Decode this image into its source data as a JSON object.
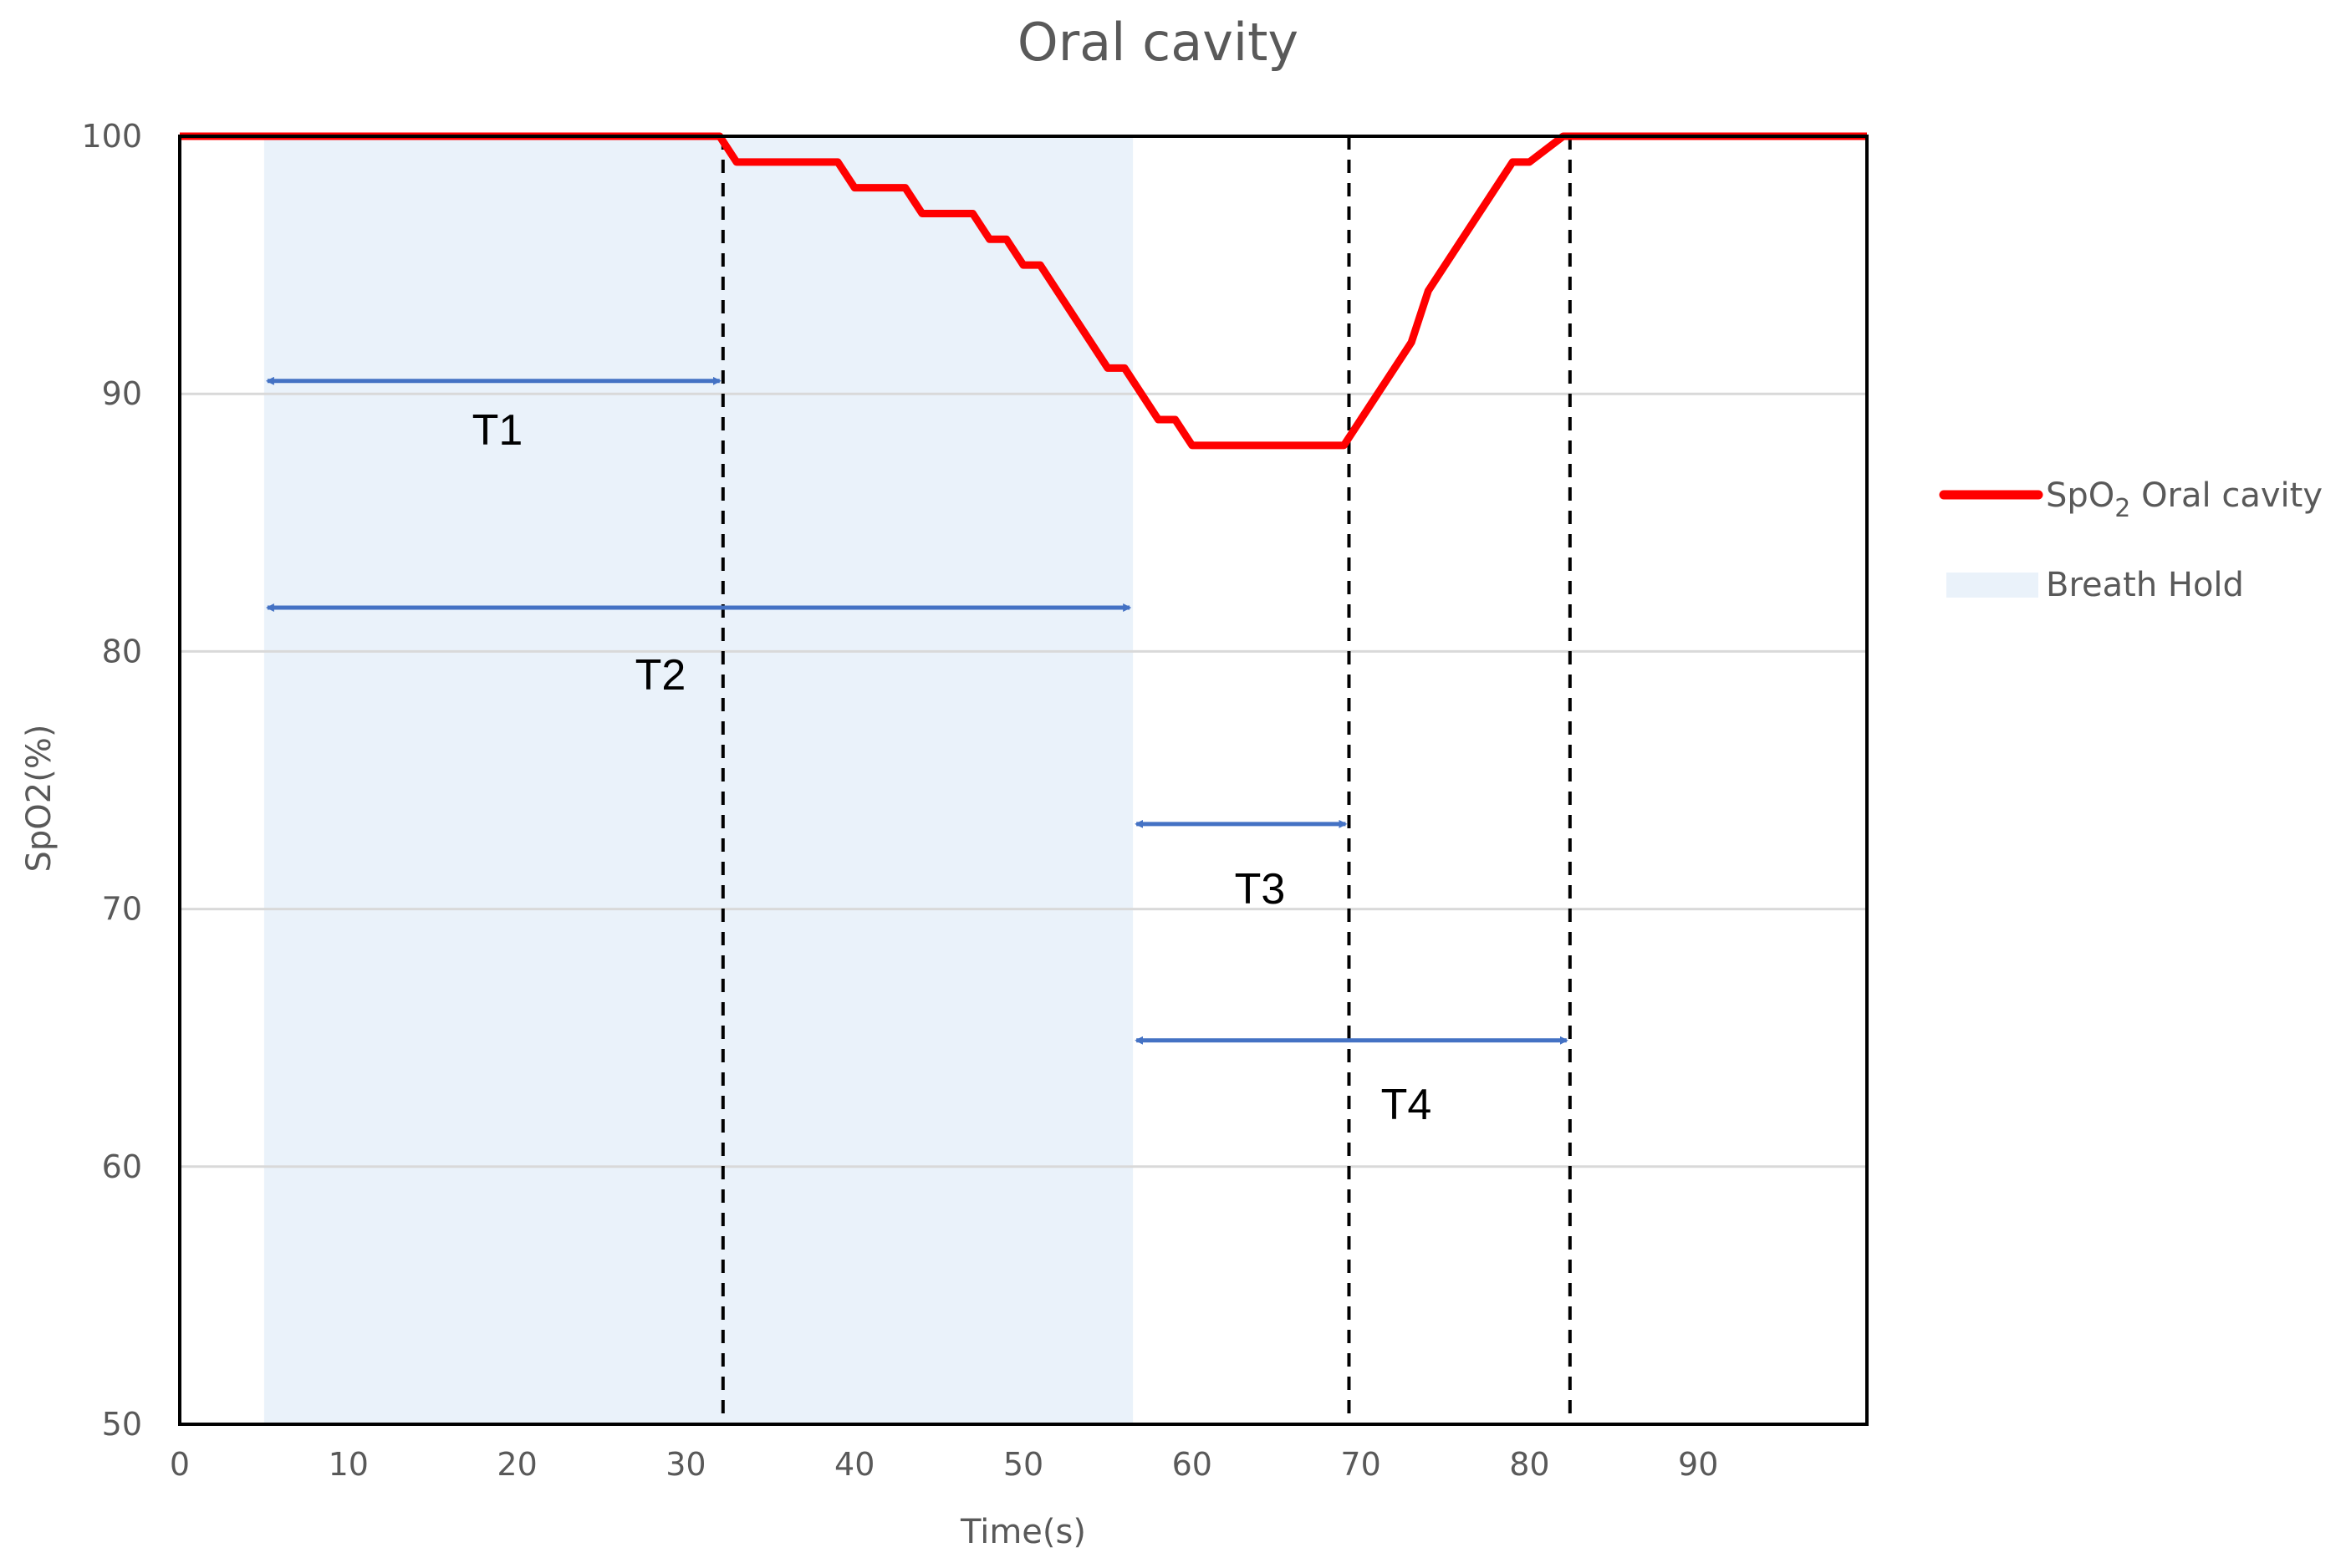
{
  "chart_data": {
    "type": "line",
    "title": "Oral cavity",
    "xlabel": "Time(s)",
    "ylabel": "SpO2(%)",
    "xlim": [
      0,
      100
    ],
    "ylim": [
      50,
      100
    ],
    "x_ticks": [
      0,
      10,
      20,
      30,
      40,
      50,
      60,
      70,
      80,
      90
    ],
    "y_ticks": [
      50,
      60,
      70,
      80,
      90,
      100
    ],
    "grid": "horizontal",
    "legend_position": "right",
    "series": [
      {
        "name": "SpO2 Oral cavity",
        "color": "#ff0000",
        "x": [
          0,
          32,
          33,
          39,
          40,
          43,
          44,
          47,
          48,
          49,
          50,
          51,
          55,
          56,
          58,
          59,
          60,
          68,
          69,
          70,
          73,
          74,
          79,
          80,
          82,
          100
        ],
        "y": [
          100,
          100,
          99,
          99,
          98,
          98,
          97,
          97,
          96,
          96,
          95,
          95,
          91,
          91,
          89,
          89,
          88,
          88,
          88,
          89,
          92,
          94,
          99,
          99,
          100,
          100
        ]
      }
    ],
    "shaded_region": {
      "name": "Breath Hold",
      "color": "#eaf2fa",
      "x_start": 5,
      "x_end": 56.5
    },
    "vlines": [
      32.2,
      69.3,
      82.4
    ],
    "intervals": [
      {
        "label": "T1",
        "x_start": 5,
        "x_end": 32.2,
        "y": 90.5
      },
      {
        "label": "T2",
        "x_start": 5,
        "x_end": 56.5,
        "y": 81.7
      },
      {
        "label": "T3",
        "x_start": 56.5,
        "x_end": 69.3,
        "y": 73.3
      },
      {
        "label": "T4",
        "x_start": 56.5,
        "x_end": 82.4,
        "y": 64.9
      }
    ],
    "legend": [
      {
        "label": "SpO",
        "subscript": "2",
        "suffix": " Oral cavity",
        "kind": "line",
        "color": "#ff0000"
      },
      {
        "label": "Breath Hold",
        "kind": "area",
        "color": "#eaf2fa"
      }
    ],
    "arrow_color": "#4472c4"
  }
}
